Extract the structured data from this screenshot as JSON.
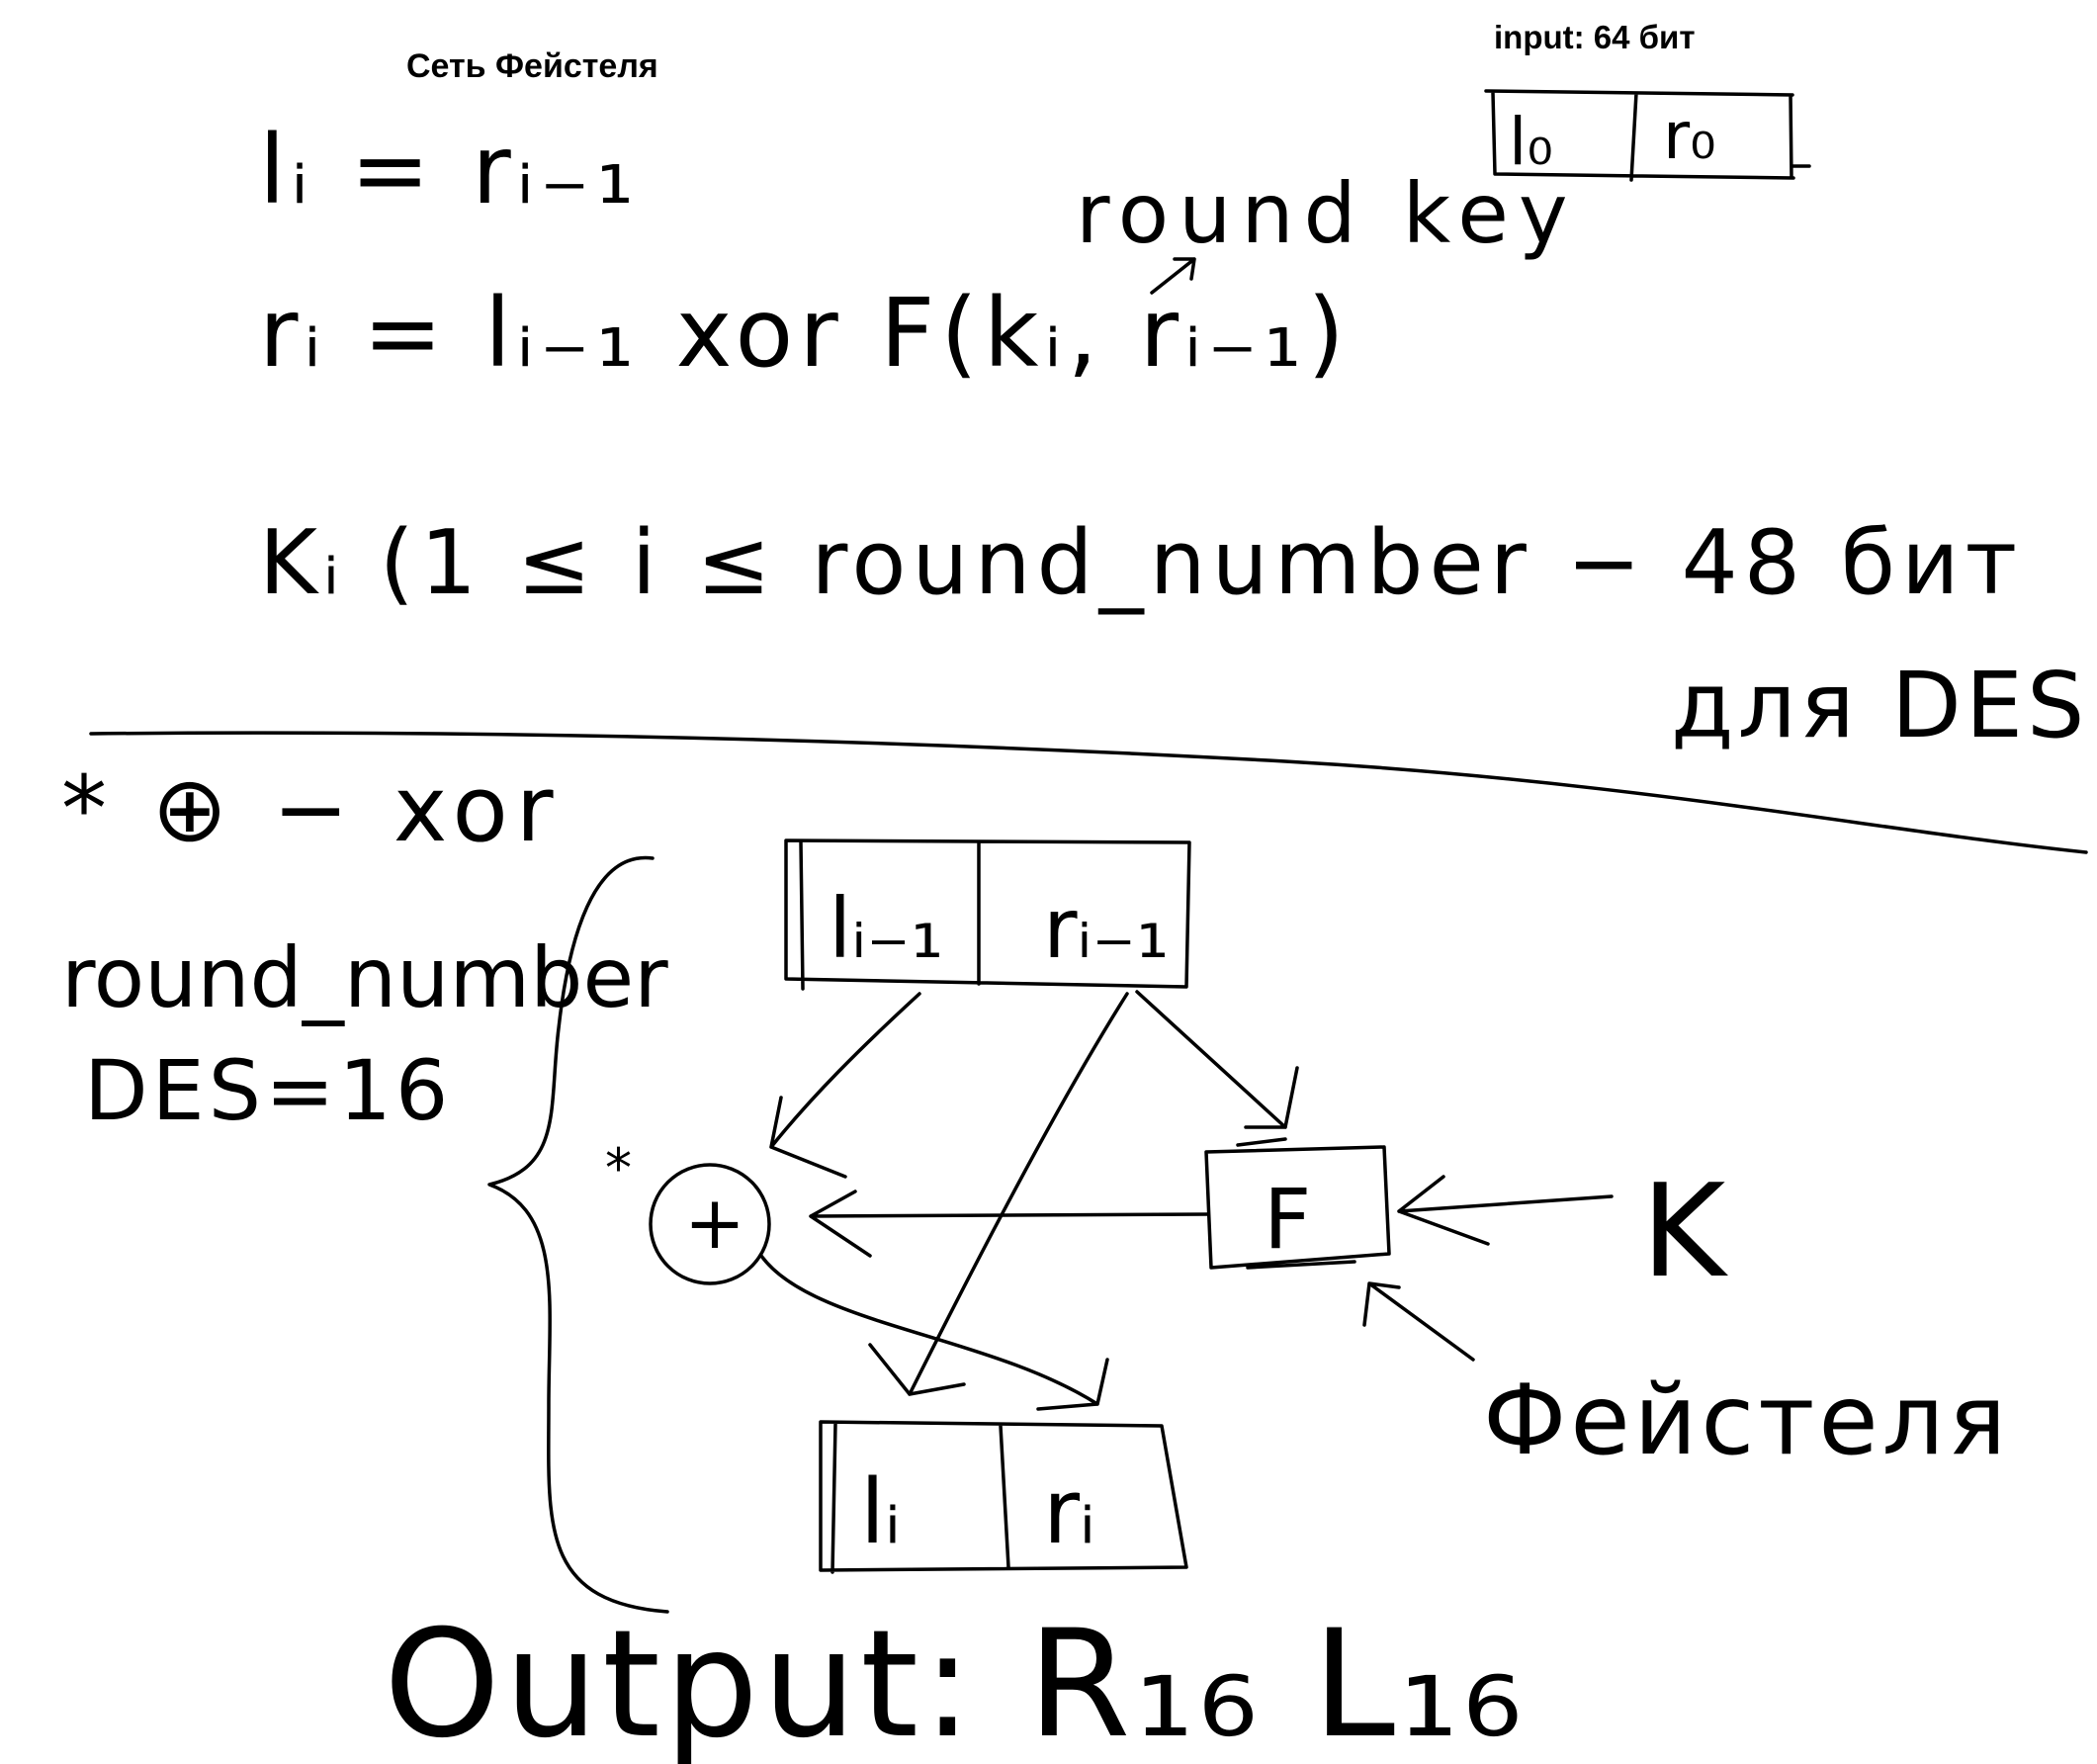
{
  "title": "Сеть Фейстеля",
  "input_label": "input: 64 бит",
  "input_block": {
    "left": "l₀",
    "right": "r₀"
  },
  "formulas": {
    "l_i": "lᵢ = rᵢ₋₁",
    "r_i": "rᵢ = lᵢ₋₁ xor F(kᵢ, rᵢ₋₁)",
    "round_key_note": "round key",
    "key_range": "Kᵢ (1 ≤ i ≤ round_number − 48 бит",
    "key_range_cont": "для DES"
  },
  "legend": {
    "xor_symbol": "* ⊕ − xor",
    "round_number": "round_number",
    "des_rounds": "DES=16"
  },
  "diagram": {
    "top_left": "lᵢ₋₁",
    "top_right": "rᵢ₋₁",
    "xor_mark": "*",
    "xor_node": "+",
    "f_box": "F",
    "key": "K",
    "f_caption": "Фейстеля",
    "bottom_left": "lᵢ",
    "bottom_right": "rᵢ"
  },
  "output": "Output: R₁₆ L₁₆"
}
